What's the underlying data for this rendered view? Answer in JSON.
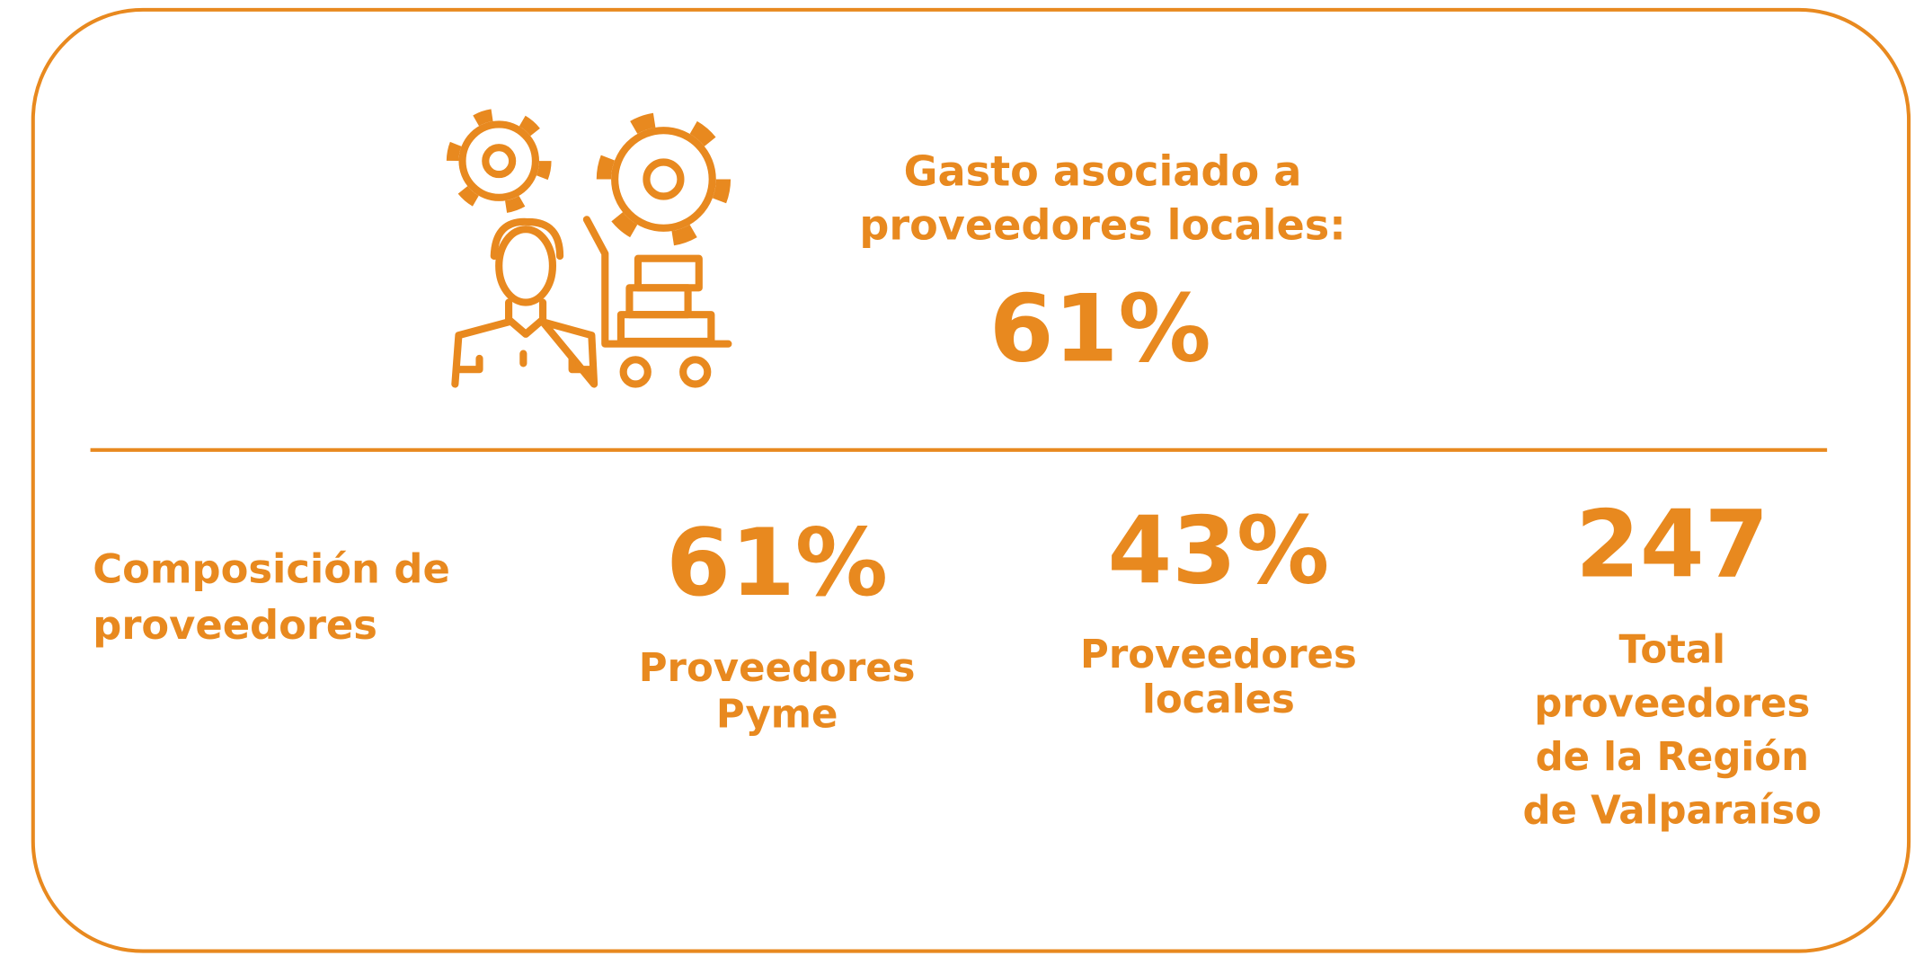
{
  "header": {
    "title_lines": [
      "Gasto asociado a",
      "proveedores locales:"
    ],
    "value": "61%"
  },
  "composition": {
    "label_lines": [
      "Composición de",
      "proveedores"
    ],
    "items": [
      {
        "value": "61%",
        "label_lines": [
          "Proveedores",
          "Pyme"
        ]
      },
      {
        "value": "43%",
        "label_lines": [
          "Proveedores",
          "locales"
        ]
      },
      {
        "value": "247",
        "label_lines": [
          "Total",
          "proveedores",
          "de la Región",
          "de Valparaíso"
        ]
      }
    ]
  }
}
